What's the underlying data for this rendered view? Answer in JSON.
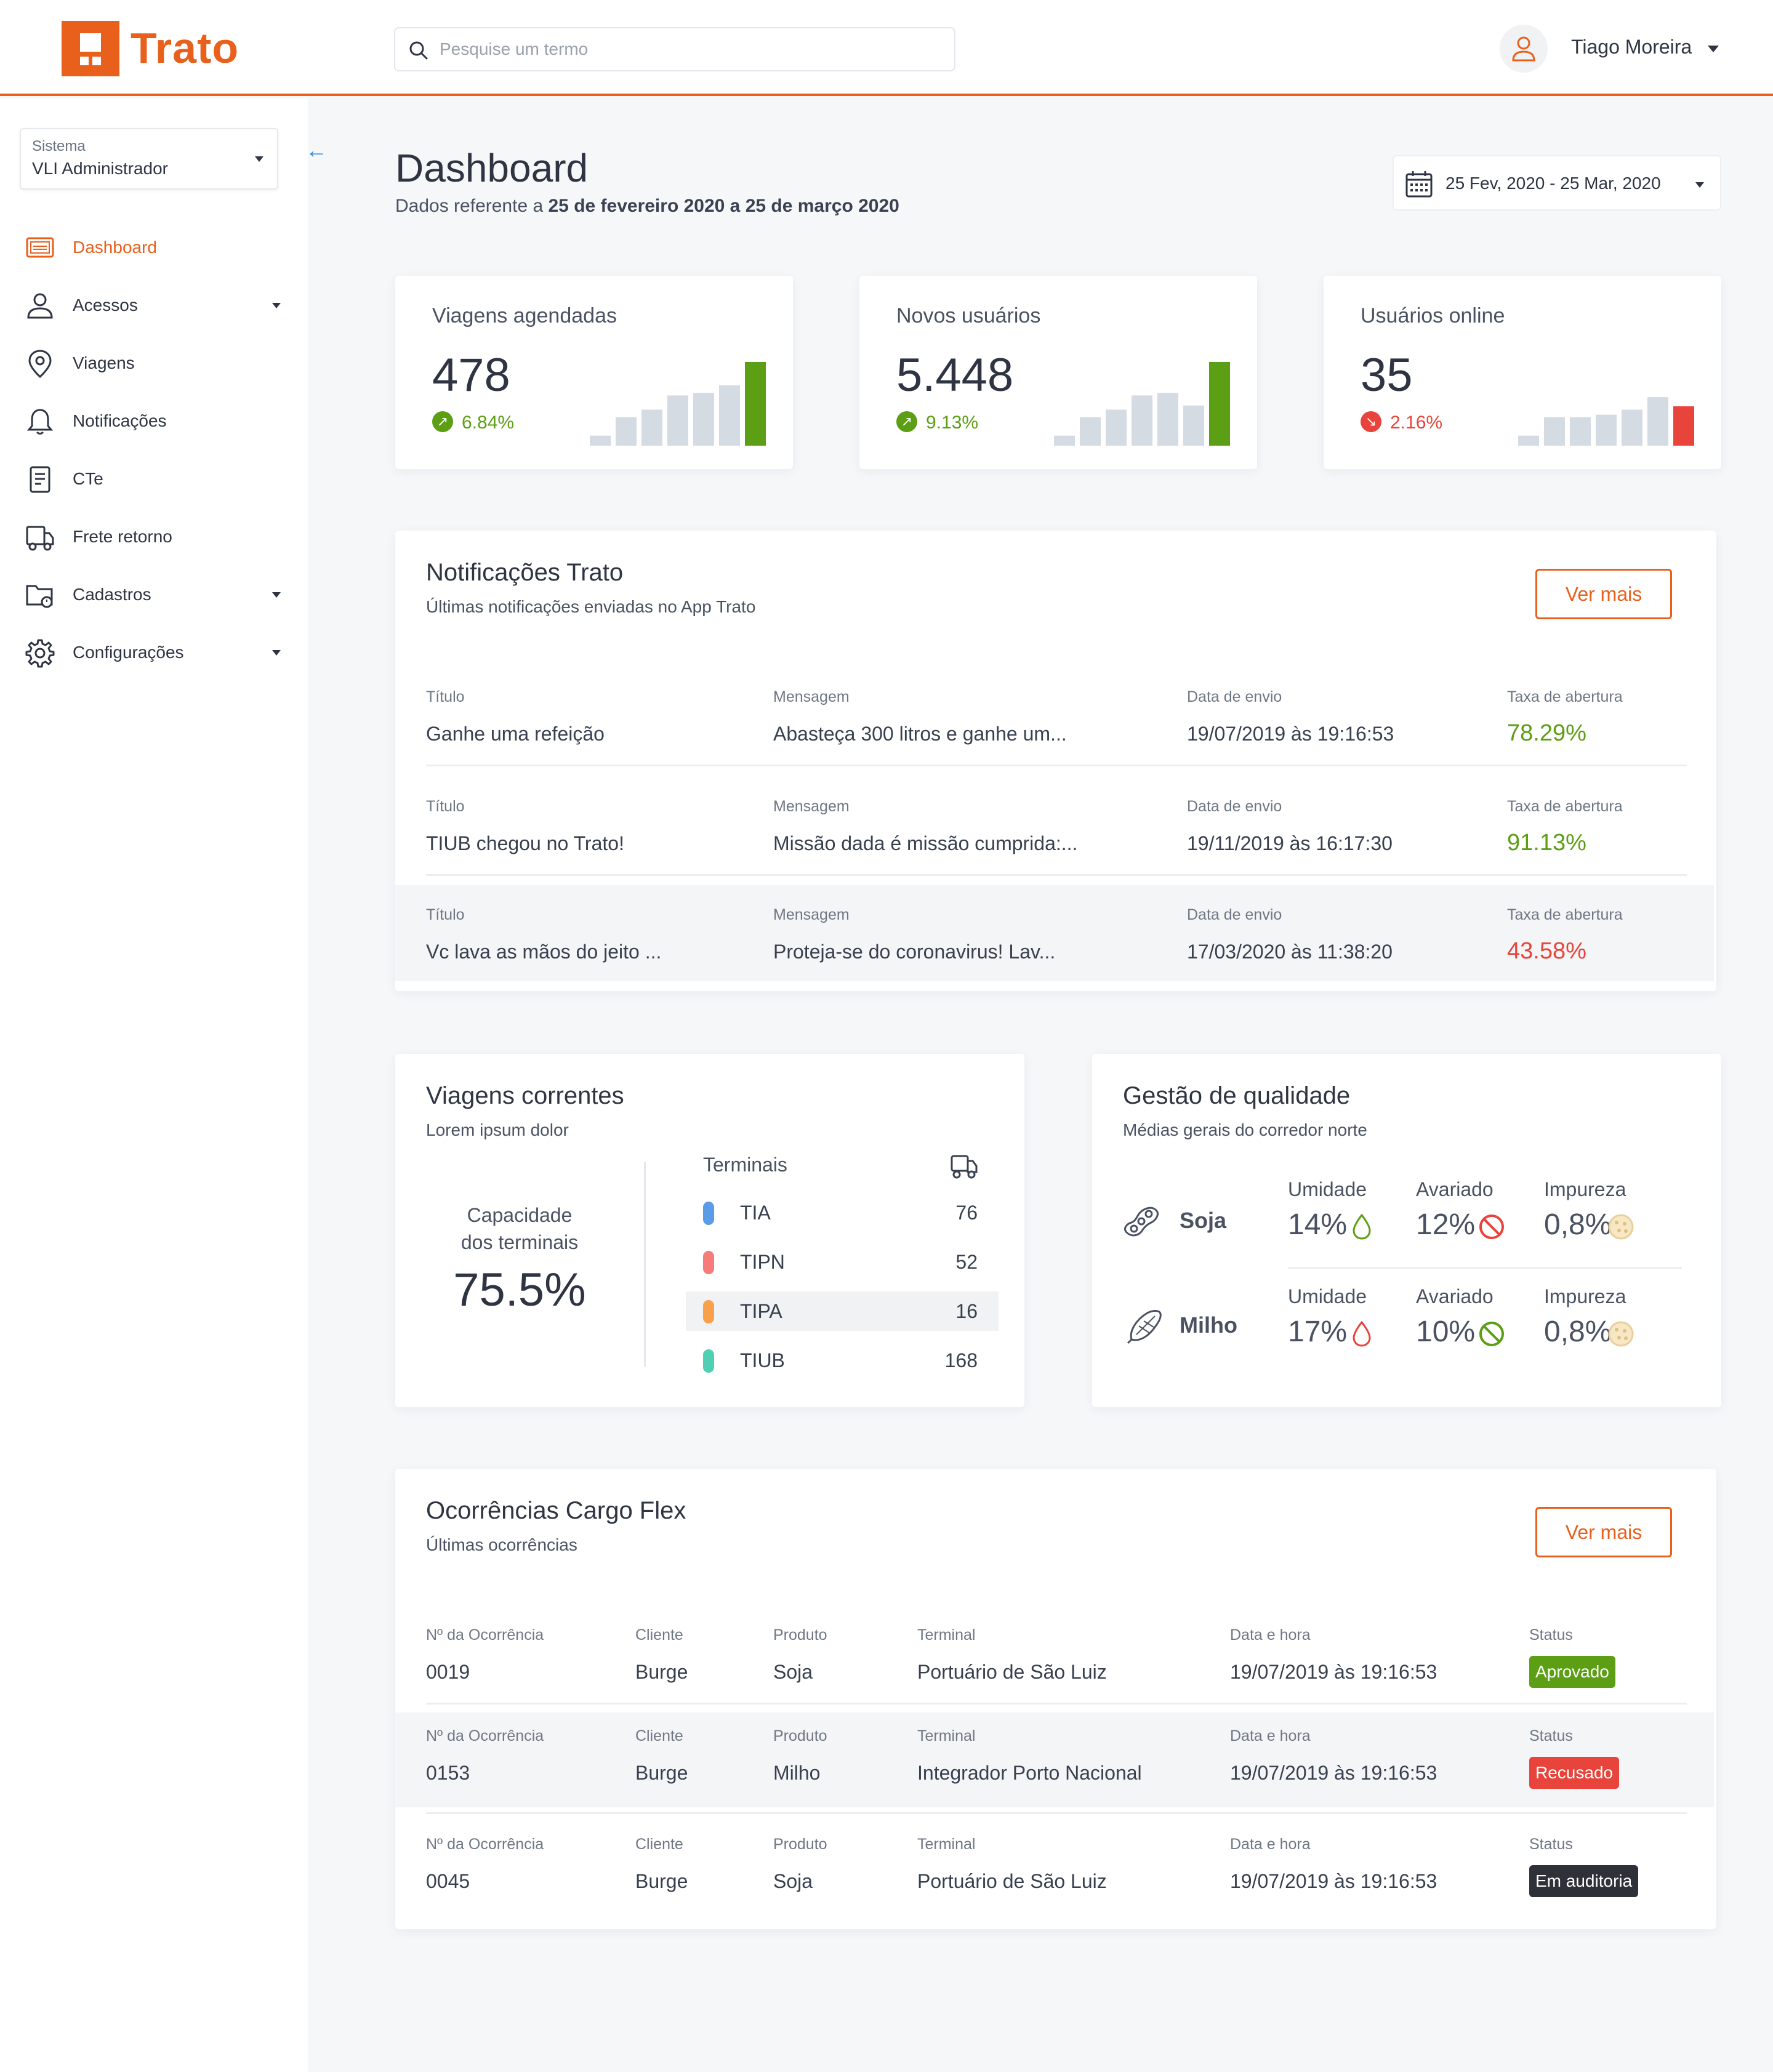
{
  "brand": {
    "name": "Trato",
    "color": "#e8601c"
  },
  "search": {
    "placeholder": "Pesquise um termo",
    "icon": "search-icon"
  },
  "user": {
    "name": "Tiago Moreira",
    "icon": "user-icon"
  },
  "sidebar": {
    "system": {
      "label": "Sistema",
      "value": "VLI Administrador"
    },
    "items": [
      {
        "label": "Dashboard",
        "icon": "dashboard-icon",
        "active": true
      },
      {
        "label": "Acessos",
        "icon": "user-icon",
        "has_submenu": true
      },
      {
        "label": "Viagens",
        "icon": "location-pin-icon"
      },
      {
        "label": "Notificações",
        "icon": "bell-icon"
      },
      {
        "label": "CTe",
        "icon": "document-icon"
      },
      {
        "label": "Frete retorno",
        "icon": "truck-icon"
      },
      {
        "label": "Cadastros",
        "icon": "folder-icon",
        "has_submenu": true
      },
      {
        "label": "Configurações",
        "icon": "gear-icon",
        "has_submenu": true
      }
    ]
  },
  "header": {
    "title": "Dashboard",
    "subtitle_prefix": "Dados referente a ",
    "subtitle_range": "25 de fevereiro 2020 a 25 de março 2020",
    "date_range": "25 Fev, 2020 - 25 Mar, 2020"
  },
  "kpis": [
    {
      "title": "Viagens agendadas",
      "value": "478",
      "change": "6.84%",
      "trend": "up",
      "color": "#5c9e14",
      "bars": [
        0.12,
        0.34,
        0.43,
        0.6,
        0.63,
        0.72,
        1.0
      ]
    },
    {
      "title": "Novos usuários",
      "value": "5.448",
      "change": "9.13%",
      "trend": "up",
      "color": "#5c9e14",
      "bars": [
        0.12,
        0.34,
        0.43,
        0.6,
        0.63,
        0.48,
        1.0
      ]
    },
    {
      "title": "Usuários online",
      "value": "35",
      "change": "2.16%",
      "trend": "down",
      "color": "#e8443b",
      "bars": [
        0.12,
        0.34,
        0.34,
        0.37,
        0.43,
        0.58,
        0.47
      ]
    }
  ],
  "notifications": {
    "title": "Notificações Trato",
    "subtitle": "Últimas notificações enviadas no App Trato",
    "more_label": "Ver mais",
    "columns": {
      "title": "Título",
      "message": "Mensagem",
      "date": "Data de envio",
      "rate": "Taxa de abertura"
    },
    "rows": [
      {
        "title": "Ganhe uma refeição",
        "message": "Abasteça 300 litros e ganhe um...",
        "date": "19/07/2019 às 19:16:53",
        "rate": "78.29%",
        "rate_color": "#5c9e14"
      },
      {
        "title": "TIUB chegou no Trato!",
        "message": "Missão dada é missão cumprida:...",
        "date": "19/11/2019 às 16:17:30",
        "rate": "91.13%",
        "rate_color": "#5c9e14"
      },
      {
        "title": "Vc lava as mãos do jeito ...",
        "message": "Proteja-se do coronavirus! Lav...",
        "date": "17/03/2020 às 11:38:20",
        "rate": "43.58%",
        "rate_color": "#e8443b"
      }
    ]
  },
  "trips": {
    "title": "Viagens correntes",
    "subtitle": "Lorem ipsum dolor",
    "capacity_label_1": "Capacidade",
    "capacity_label_2": "dos terminais",
    "capacity_value": "75.5%",
    "terminals_header": "Terminais",
    "terminals": [
      {
        "name": "TIA",
        "value": "76",
        "color": "#5b9ce8"
      },
      {
        "name": "TIPN",
        "value": "52",
        "color": "#f77b7b"
      },
      {
        "name": "TIPA",
        "value": "16",
        "color": "#f9a04d"
      },
      {
        "name": "TIUB",
        "value": "168",
        "color": "#4fcfb4"
      }
    ]
  },
  "quality": {
    "title": "Gestão de qualidade",
    "subtitle": "Médias gerais do corredor norte",
    "products": [
      {
        "name": "Soja",
        "humidity_label": "Umidade",
        "humidity": "14%",
        "damaged_label": "Avariado",
        "damaged": "12%",
        "impurity_label": "Impureza",
        "impurity": "0,8%",
        "humidity_color": "#5c9e14",
        "damaged_color": "#e8443b"
      },
      {
        "name": "Milho",
        "humidity_label": "Umidade",
        "humidity": "17%",
        "damaged_label": "Avariado",
        "damaged": "10%",
        "impurity_label": "Impureza",
        "impurity": "0,8%",
        "humidity_color": "#e8443b",
        "damaged_color": "#5c9e14"
      }
    ]
  },
  "occurrences": {
    "title": "Ocorrências Cargo Flex",
    "subtitle": "Últimas ocorrências",
    "more_label": "Ver mais",
    "columns": {
      "id": "Nº da Ocorrência",
      "client": "Cliente",
      "product": "Produto",
      "terminal": "Terminal",
      "datetime": "Data e hora",
      "status": "Status"
    },
    "rows": [
      {
        "id": "0019",
        "client": "Burge",
        "product": "Soja",
        "terminal": "Portuário de São Luiz",
        "datetime": "19/07/2019 às 19:16:53",
        "status": "Aprovado",
        "status_color": "#5c9e14"
      },
      {
        "id": "0153",
        "client": "Burge",
        "product": "Milho",
        "terminal": "Integrador Porto Nacional",
        "datetime": "19/07/2019 às 19:16:53",
        "status": "Recusado",
        "status_color": "#e8443b"
      },
      {
        "id": "0045",
        "client": "Burge",
        "product": "Soja",
        "terminal": "Portuário de São Luiz",
        "datetime": "19/07/2019 às 19:16:53",
        "status": "Em auditoria",
        "status_color": "#2e3238"
      }
    ]
  }
}
